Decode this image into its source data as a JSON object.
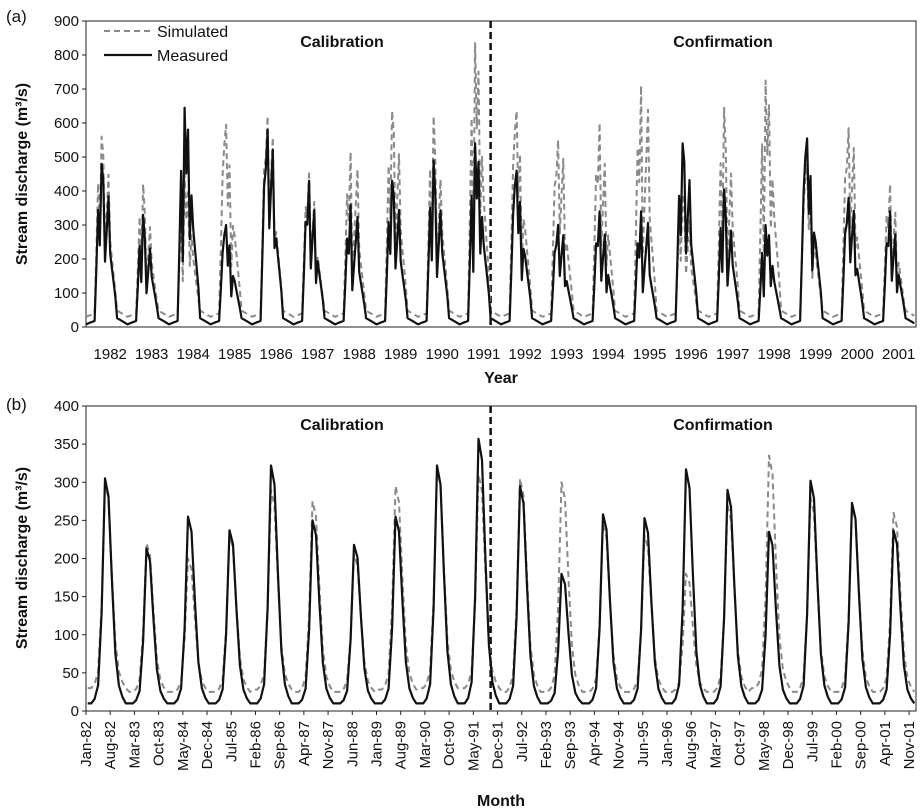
{
  "chart_data": [
    {
      "panel": "(a)",
      "type": "line",
      "xlabel": "Year",
      "ylabel": "Stream discharge (m³/s)",
      "ylim": [
        0,
        900
      ],
      "yticks": [
        0,
        100,
        200,
        300,
        400,
        500,
        600,
        700,
        800,
        900
      ],
      "x_tick_labels": [
        "1982",
        "1983",
        "1984",
        "1985",
        "1986",
        "1987",
        "1988",
        "1989",
        "1990",
        "1991",
        "1992",
        "1993",
        "1994",
        "1995",
        "1996",
        "1997",
        "1998",
        "1999",
        "2000",
        "2001"
      ],
      "annotations": [
        "Calibration",
        "Confirmation"
      ],
      "divider_after": "1991",
      "legend": {
        "placement": "top-left",
        "entries": [
          "Simulated",
          "Measured"
        ]
      },
      "series": [
        {
          "name": "Simulated",
          "style": "dashed",
          "color": "#8a8a8a",
          "annual_peaks": [
            560,
            420,
            450,
            595,
            620,
            460,
            515,
            635,
            620,
            835,
            635,
            550,
            600,
            710,
            390,
            645,
            725,
            480,
            585,
            420
          ]
        },
        {
          "name": "Measured",
          "style": "solid",
          "color": "#111111",
          "annual_peaks": [
            480,
            330,
            645,
            300,
            580,
            430,
            360,
            430,
            490,
            540,
            460,
            300,
            340,
            340,
            540,
            405,
            300,
            555,
            380,
            340
          ]
        }
      ]
    },
    {
      "panel": "(b)",
      "type": "line",
      "xlabel": "Month",
      "ylabel": "Stream discharge (m³/s)",
      "ylim": [
        0,
        400
      ],
      "yticks": [
        0,
        50,
        100,
        150,
        200,
        250,
        300,
        350,
        400
      ],
      "x_tick_labels": [
        "Jan-82",
        "Aug-82",
        "Mar-83",
        "Oct-83",
        "May-84",
        "Dec-84",
        "Jul-85",
        "Feb-86",
        "Sep-86",
        "Apr-87",
        "Nov-87",
        "Jun-88",
        "Jan-89",
        "Aug-89",
        "Mar-90",
        "Oct-90",
        "May-91",
        "Dec-91",
        "Jul-92",
        "Feb-93",
        "Sep-93",
        "Apr-94",
        "Nov-94",
        "Jun-95",
        "Jan-96",
        "Aug-96",
        "Mar-97",
        "Oct-97",
        "May-98",
        "Dec-98",
        "Jul-99",
        "Feb-00",
        "Sep-00",
        "Apr-01",
        "Nov-01"
      ],
      "annotations": [
        "Calibration",
        "Confirmation"
      ],
      "divider_after": "Dec-91",
      "series": [
        {
          "name": "Simulated",
          "style": "dashed",
          "color": "#8a8a8a",
          "annual_peaks": [
            300,
            220,
            200,
            230,
            290,
            275,
            205,
            295,
            318,
            310,
            305,
            300,
            245,
            230,
            180,
            270,
            335,
            280,
            270,
            260
          ],
          "annual_min": [
            30,
            25,
            25,
            25,
            28,
            25,
            25,
            28,
            30,
            30,
            25,
            25,
            25,
            25,
            25,
            25,
            30,
            25,
            25,
            25
          ]
        },
        {
          "name": "Measured",
          "style": "solid",
          "color": "#111111",
          "annual_peaks": [
            305,
            213,
            255,
            237,
            322,
            250,
            218,
            255,
            322,
            357,
            295,
            180,
            258,
            253,
            317,
            290,
            235,
            302,
            273,
            237
          ],
          "annual_min": [
            10,
            10,
            10,
            10,
            10,
            10,
            10,
            10,
            10,
            10,
            10,
            10,
            10,
            10,
            10,
            10,
            10,
            10,
            10,
            10
          ]
        }
      ]
    }
  ]
}
